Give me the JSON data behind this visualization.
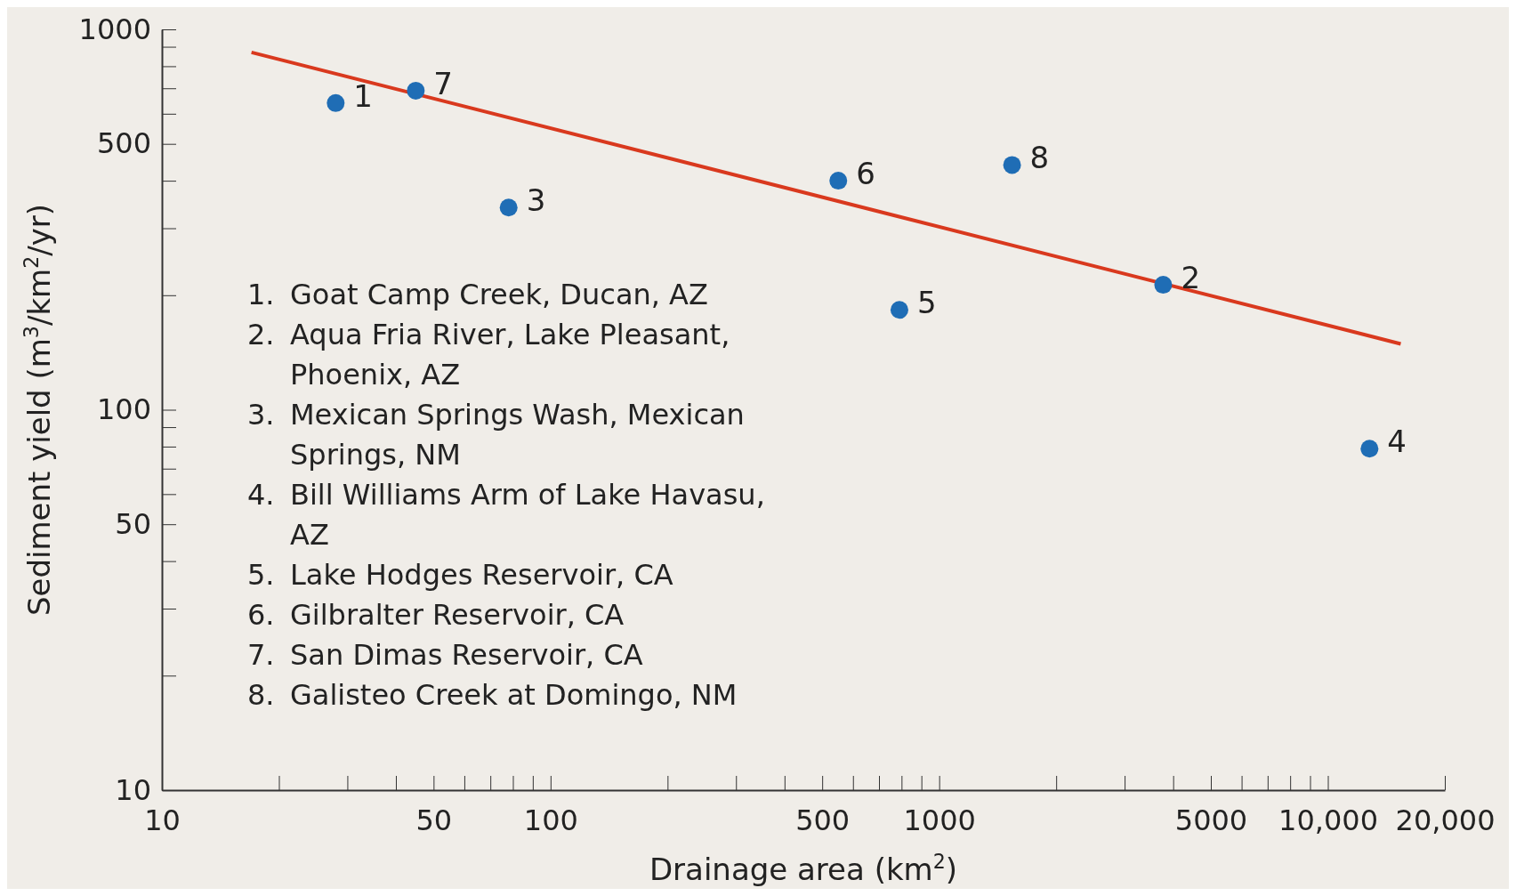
{
  "chart_data": {
    "type": "scatter",
    "xlabel": "Drainage area (km$^{2}$)",
    "ylabel": "Sediment yield (m$^{3}$/km$^{2}$/yr)",
    "log": "xy",
    "grid": false,
    "marker": "circle",
    "xlim": [
      10,
      20000
    ],
    "ylim": [
      10,
      1000
    ],
    "xticks": [
      10,
      {
        "value": 20,
        "label": null
      },
      {
        "value": 30,
        "label": null
      },
      {
        "value": 40,
        "label": null
      },
      50,
      {
        "value": 60,
        "label": null
      },
      {
        "value": 70,
        "label": null
      },
      {
        "value": 80,
        "label": null
      },
      {
        "value": 90,
        "label": null
      },
      100,
      {
        "value": 200,
        "label": null
      },
      {
        "value": 300,
        "label": null
      },
      {
        "value": 400,
        "label": null
      },
      500,
      {
        "value": 600,
        "label": null
      },
      {
        "value": 700,
        "label": null
      },
      {
        "value": 800,
        "label": null
      },
      {
        "value": 900,
        "label": null
      },
      1000,
      {
        "value": 2000,
        "label": null
      },
      {
        "value": 3000,
        "label": null
      },
      {
        "value": 4000,
        "label": null
      },
      5000,
      {
        "value": 6000,
        "label": null
      },
      {
        "value": 7000,
        "label": null
      },
      {
        "value": 8000,
        "label": null
      },
      {
        "value": 9000,
        "label": null
      },
      {
        "value": 10000,
        "label": "10,000"
      },
      {
        "value": 20000,
        "label": "20,000"
      }
    ],
    "yticks": [
      10,
      {
        "value": 20,
        "label": null
      },
      {
        "value": 30,
        "label": null
      },
      {
        "value": 40,
        "label": null
      },
      50,
      {
        "value": 60,
        "label": null
      },
      {
        "value": 70,
        "label": null
      },
      {
        "value": 80,
        "label": null
      },
      {
        "value": 90,
        "label": null
      },
      100,
      {
        "value": 200,
        "label": null
      },
      {
        "value": 300,
        "label": null
      },
      {
        "value": 400,
        "label": null
      },
      500,
      {
        "value": 600,
        "label": null
      },
      {
        "value": 700,
        "label": null
      },
      {
        "value": 800,
        "label": null
      },
      {
        "value": 900,
        "label": null
      },
      1000
    ],
    "series": [
      {
        "name": "1",
        "type": "scatter",
        "color": "#1f6db5",
        "x": [
          28
        ],
        "values": [
          640
        ]
      },
      {
        "name": "2",
        "type": "scatter",
        "color": "#1f6db5",
        "x": [
          3770
        ],
        "values": [
          213
        ]
      },
      {
        "name": "3",
        "type": "scatter",
        "color": "#1f6db5",
        "x": [
          78
        ],
        "values": [
          340
        ]
      },
      {
        "name": "4",
        "type": "scatter",
        "color": "#1f6db5",
        "x": [
          12800
        ],
        "values": [
          79
        ]
      },
      {
        "name": "5",
        "type": "scatter",
        "color": "#1f6db5",
        "x": [
          790
        ],
        "values": [
          183
        ]
      },
      {
        "name": "6",
        "type": "scatter",
        "color": "#1f6db5",
        "x": [
          550
        ],
        "values": [
          400
        ]
      },
      {
        "name": "7",
        "type": "scatter",
        "color": "#1f6db5",
        "x": [
          45
        ],
        "values": [
          690
        ]
      },
      {
        "name": "8",
        "type": "scatter",
        "color": "#1f6db5",
        "x": [
          1540
        ],
        "values": [
          440
        ]
      },
      {
        "type": "line",
        "color": "#d9391e",
        "marker": "none",
        "x": [
          17,
          15400
        ],
        "values": [
          870,
          149
        ]
      }
    ],
    "annotations": [
      "1. Goat Camp Creek, Ducan, AZ",
      "2. Aqua Fria River, Lake Pleasant, Phoenix, AZ",
      "3. Mexican Springs Wash, Mexican Springs, NM",
      "4. Bill Williams Arm of Lake Havasu, AZ",
      "5. Lake Hodges Reservoir, CA",
      "6. Gilbralter Reservoir, CA",
      "7. San Dimas Reservoir, CA",
      "8. Galisteo Creek at Domingo, NM"
    ]
  }
}
